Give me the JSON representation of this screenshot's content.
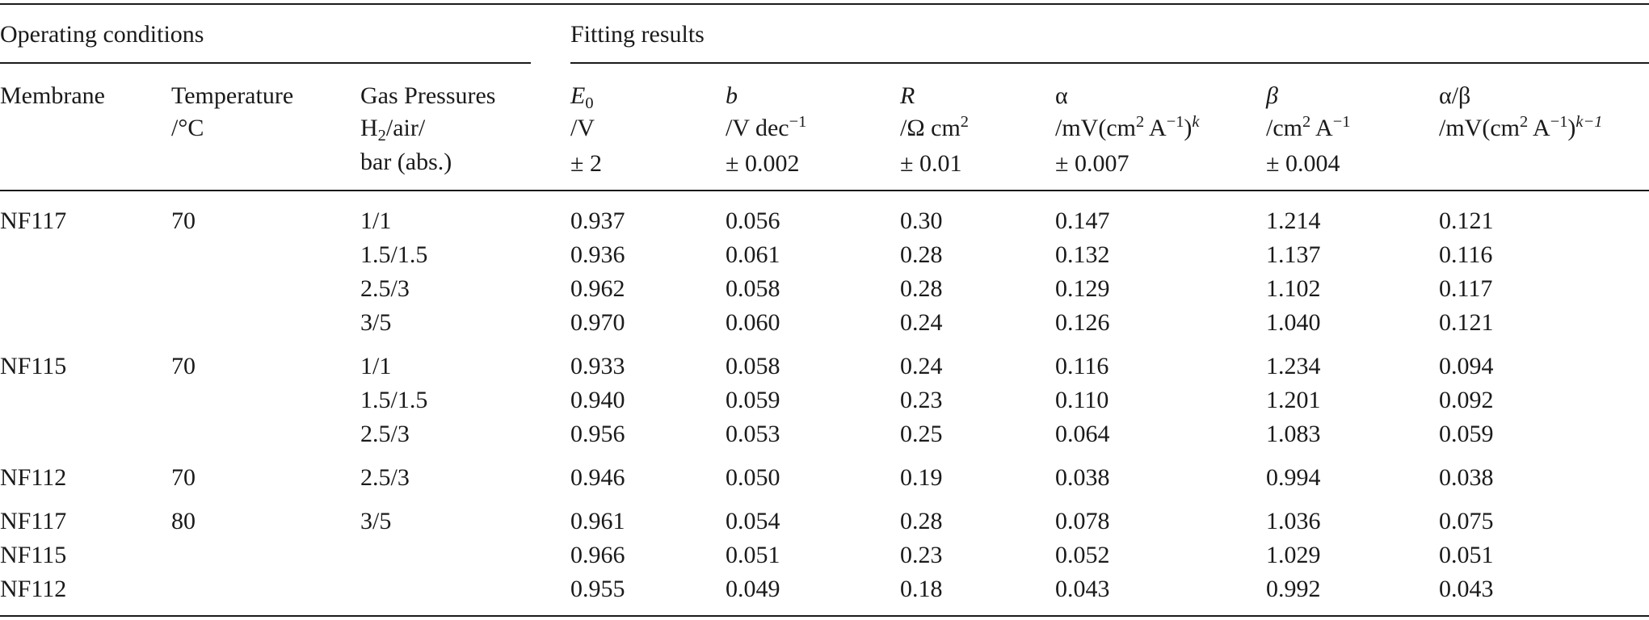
{
  "groups": {
    "operating": "Operating conditions",
    "fitting": "Fitting results"
  },
  "headers": {
    "membrane": "Membrane",
    "temperature": [
      "Temperature",
      "/°C"
    ],
    "gas": [
      "Gas Pressures",
      "H",
      "2",
      "/air/",
      "bar (abs.)"
    ],
    "e0": [
      "E",
      "0",
      "/V",
      "± 2"
    ],
    "b": [
      "b",
      "/V dec",
      "−1",
      "± 0.002"
    ],
    "r": [
      "R",
      "/Ω cm",
      "2",
      "± 0.01"
    ],
    "alpha": [
      "α",
      "/mV(cm",
      "2",
      " A",
      "−1",
      ")",
      "k",
      "± 0.007"
    ],
    "beta": [
      "β",
      "/cm",
      "2",
      " A",
      "−1",
      "± 0.004"
    ],
    "ratio": [
      "α/β",
      "/mV(cm",
      "2",
      " A",
      "−1",
      ")",
      "k−1"
    ]
  },
  "rows": [
    [
      "NF117",
      "70",
      "1/1",
      "0.937",
      "0.056",
      "0.30",
      "0.147",
      "1.214",
      "0.121"
    ],
    [
      "",
      "",
      "1.5/1.5",
      "0.936",
      "0.061",
      "0.28",
      "0.132",
      "1.137",
      "0.116"
    ],
    [
      "",
      "",
      "2.5/3",
      "0.962",
      "0.058",
      "0.28",
      "0.129",
      "1.102",
      "0.117"
    ],
    [
      "",
      "",
      "3/5",
      "0.970",
      "0.060",
      "0.24",
      "0.126",
      "1.040",
      "0.121"
    ],
    [
      "NF115",
      "70",
      "1/1",
      "0.933",
      "0.058",
      "0.24",
      "0.116",
      "1.234",
      "0.094"
    ],
    [
      "",
      "",
      "1.5/1.5",
      "0.940",
      "0.059",
      "0.23",
      "0.110",
      "1.201",
      "0.092"
    ],
    [
      "",
      "",
      "2.5/3",
      "0.956",
      "0.053",
      "0.25",
      "0.064",
      "1.083",
      "0.059"
    ],
    [
      "NF112",
      "70",
      "2.5/3",
      "0.946",
      "0.050",
      "0.19",
      "0.038",
      "0.994",
      "0.038"
    ],
    [
      "NF117",
      "80",
      "3/5",
      "0.961",
      "0.054",
      "0.28",
      "0.078",
      "1.036",
      "0.075"
    ],
    [
      "NF115",
      "",
      "",
      "0.966",
      "0.051",
      "0.23",
      "0.052",
      "1.029",
      "0.051"
    ],
    [
      "NF112",
      "",
      "",
      "0.955",
      "0.049",
      "0.18",
      "0.043",
      "0.992",
      "0.043"
    ]
  ]
}
